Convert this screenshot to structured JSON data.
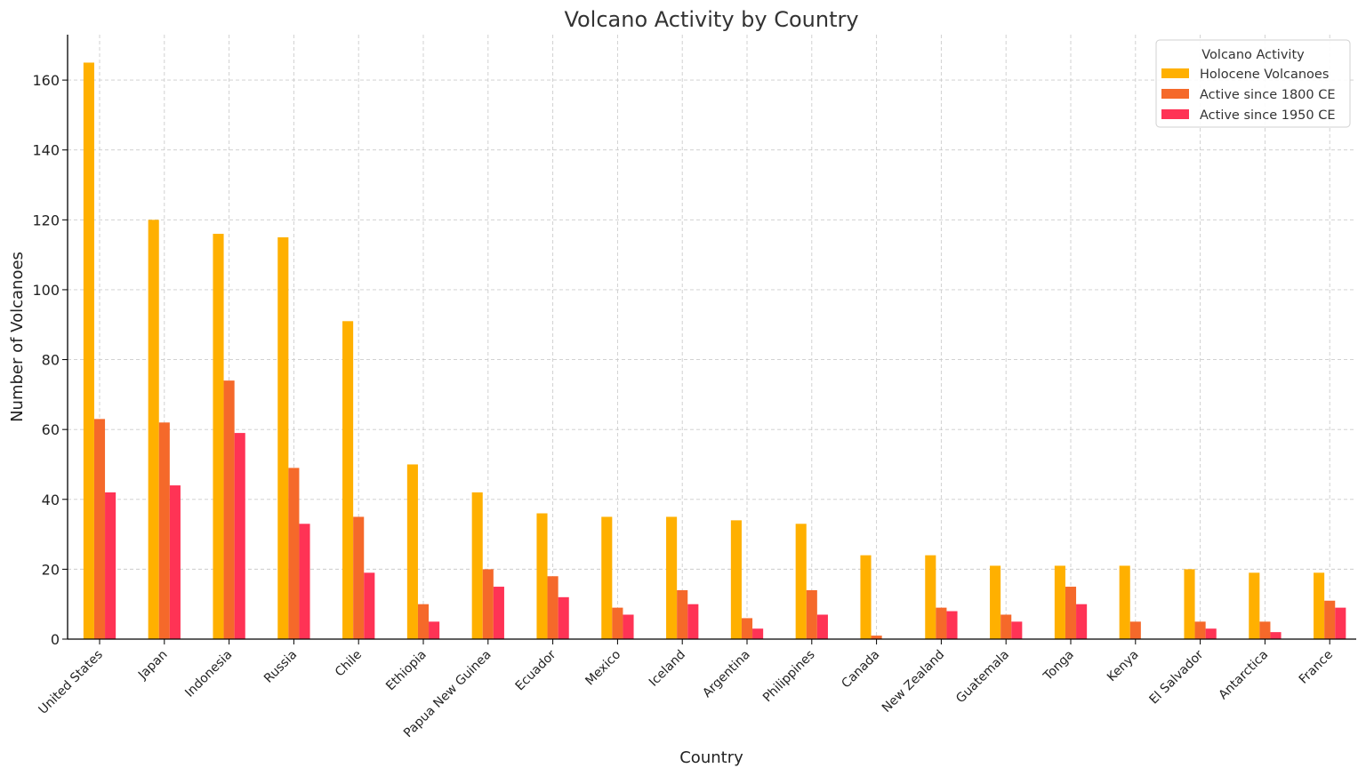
{
  "chart_data": {
    "type": "bar",
    "title": "Volcano Activity by Country",
    "xlabel": "Country",
    "ylabel": "Number of Volcanoes",
    "ylim": [
      0,
      173
    ],
    "yticks": [
      0,
      20,
      40,
      60,
      80,
      100,
      120,
      140,
      160
    ],
    "grid": true,
    "legend": {
      "title": "Volcano Activity",
      "position": "top-right"
    },
    "categories": [
      "United States",
      "Japan",
      "Indonesia",
      "Russia",
      "Chile",
      "Ethiopia",
      "Papua New Guinea",
      "Ecuador",
      "Mexico",
      "Iceland",
      "Argentina",
      "Philippines",
      "Canada",
      "New Zealand",
      "Guatemala",
      "Tonga",
      "Kenya",
      "El Salvador",
      "Antarctica",
      "France"
    ],
    "series": [
      {
        "name": "Holocene Volcanoes",
        "color": "#FFB000",
        "values": [
          165,
          120,
          116,
          115,
          91,
          50,
          42,
          36,
          35,
          35,
          34,
          33,
          24,
          24,
          21,
          21,
          21,
          20,
          19,
          19
        ]
      },
      {
        "name": "Active since 1800 CE",
        "color": "#F5692A",
        "values": [
          63,
          62,
          74,
          49,
          35,
          10,
          20,
          18,
          9,
          14,
          6,
          14,
          1,
          9,
          7,
          15,
          5,
          5,
          5,
          11
        ]
      },
      {
        "name": "Active since 1950 CE",
        "color": "#FF3355",
        "values": [
          42,
          44,
          59,
          33,
          19,
          5,
          15,
          12,
          7,
          10,
          3,
          7,
          0,
          8,
          5,
          10,
          0,
          3,
          2,
          9
        ]
      }
    ]
  }
}
